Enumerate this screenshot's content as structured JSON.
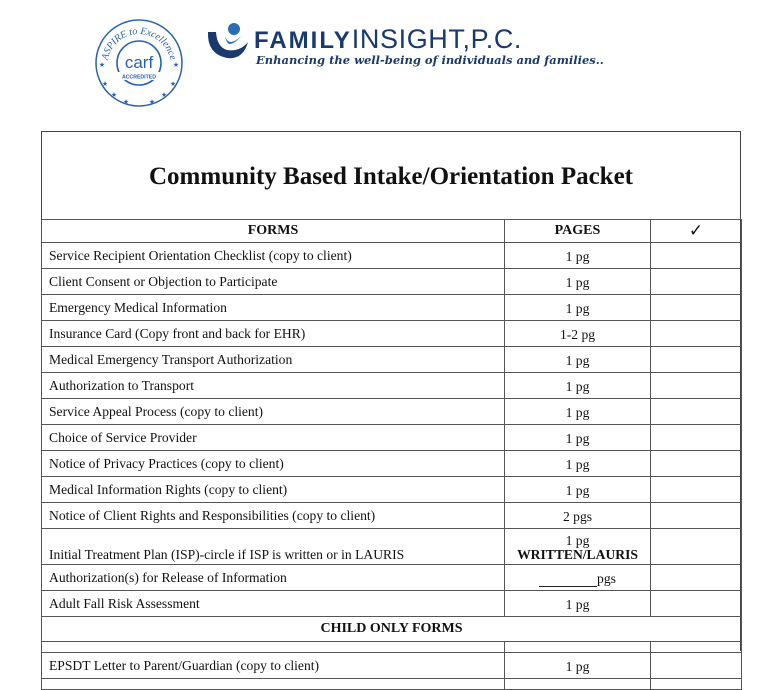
{
  "header": {
    "seal": {
      "arc_text": "ASPIRE to Excellence",
      "center_text": "carf",
      "band_text": "ACCREDITED"
    },
    "brand": {
      "name_bold": "FAMILY",
      "name_light": "INSIGHT,P.C.",
      "tagline": "Enhancing the well-being of individuals and families..",
      "colors": {
        "navy": "#1a3a6e",
        "blue": "#2a6db5"
      }
    }
  },
  "document": {
    "title": "Community Based Intake/Orientation Packet",
    "columns": {
      "forms": "FORMS",
      "pages": "PAGES",
      "check": "✓"
    },
    "rows": [
      {
        "form": "Service Recipient Orientation Checklist (copy to client)",
        "pages": "1 pg"
      },
      {
        "form": "Client Consent or Objection to Participate",
        "pages": "1 pg"
      },
      {
        "form": "Emergency Medical Information",
        "pages": "1 pg"
      },
      {
        "form": "Insurance Card (Copy front and back for EHR)",
        "pages": "1-2 pg"
      },
      {
        "form": "Medical Emergency Transport Authorization",
        "pages": "1 pg"
      },
      {
        "form": "Authorization to Transport",
        "pages": "1 pg"
      },
      {
        "form": "Service Appeal Process (copy to client)",
        "pages": "1 pg"
      },
      {
        "form": "Choice of Service Provider",
        "pages": "1 pg"
      },
      {
        "form": "Notice of Privacy Practices (copy to client)",
        "pages": "1 pg"
      },
      {
        "form": "Medical Information Rights (copy to client)",
        "pages": "1 pg"
      },
      {
        "form": "Notice of Client Rights and Responsibilities (copy to client)",
        "pages": "2 pgs"
      }
    ],
    "isp_row": {
      "form": "Initial Treatment Plan (ISP)-circle if ISP is written or in LAURIS",
      "pages_line1": "1 pg",
      "pages_line2": "WRITTEN/LAURIS"
    },
    "release_row": {
      "form": "Authorization(s) for Release of Information",
      "pages": "pgs"
    },
    "fall_row": {
      "form": "Adult Fall Risk Assessment",
      "pages": "1 pg"
    },
    "child_section": {
      "title": "CHILD ONLY FORMS",
      "rows": [
        {
          "form": "EPSDT Letter to Parent/Guardian (copy to client)",
          "pages": "1 pg"
        }
      ]
    }
  }
}
